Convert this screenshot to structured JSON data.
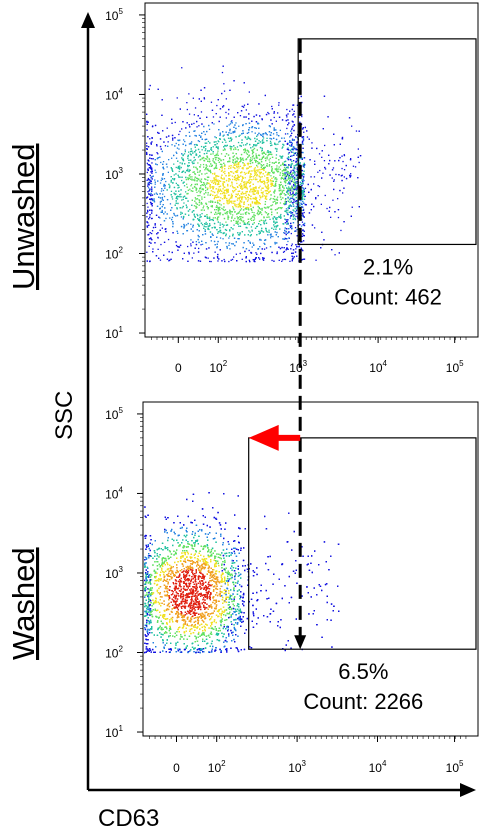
{
  "figure": {
    "y_axis_label": "SSC",
    "x_axis_label": "CD63"
  },
  "chart_data": [
    {
      "type": "scatter",
      "name": "Unwashed",
      "row_label": "Unwashed",
      "x_axis": {
        "scale": "biexponential",
        "tick_labels": [
          {
            "base": "0",
            "exp": ""
          },
          {
            "base": "10",
            "exp": "2"
          },
          {
            "base": "10",
            "exp": "3"
          },
          {
            "base": "10",
            "exp": "4"
          },
          {
            "base": "10",
            "exp": "5"
          }
        ]
      },
      "y_axis": {
        "scale": "log",
        "range": [
          10,
          100000
        ],
        "tick_labels": [
          {
            "base": "10",
            "exp": "1"
          },
          {
            "base": "10",
            "exp": "2"
          },
          {
            "base": "10",
            "exp": "3"
          },
          {
            "base": "10",
            "exp": "4"
          },
          {
            "base": "10",
            "exp": "5"
          }
        ]
      },
      "gate": {
        "x_from": 1000,
        "y_range": [
          130,
          50000
        ],
        "percent": "2.1%",
        "count": "Count: 462"
      }
    },
    {
      "type": "scatter",
      "name": "Washed",
      "row_label": "Washed",
      "x_axis": {
        "scale": "biexponential",
        "tick_labels": [
          {
            "base": "0",
            "exp": ""
          },
          {
            "base": "10",
            "exp": "2"
          },
          {
            "base": "10",
            "exp": "3"
          },
          {
            "base": "10",
            "exp": "4"
          },
          {
            "base": "10",
            "exp": "5"
          }
        ]
      },
      "y_axis": {
        "scale": "log",
        "range": [
          10,
          100000
        ],
        "tick_labels": [
          {
            "base": "10",
            "exp": "1"
          },
          {
            "base": "10",
            "exp": "2"
          },
          {
            "base": "10",
            "exp": "3"
          },
          {
            "base": "10",
            "exp": "4"
          },
          {
            "base": "10",
            "exp": "5"
          }
        ]
      },
      "gate": {
        "x_from": 250,
        "y_range": [
          110,
          50000
        ],
        "percent": "6.5%",
        "count": "Count: 2266"
      }
    }
  ],
  "colors": {
    "low_density": "#1010e0",
    "mid_density": "#20c0a0",
    "high_density": "#f0e020",
    "peak_density": "#e02010",
    "arrow": "#ff0000"
  }
}
